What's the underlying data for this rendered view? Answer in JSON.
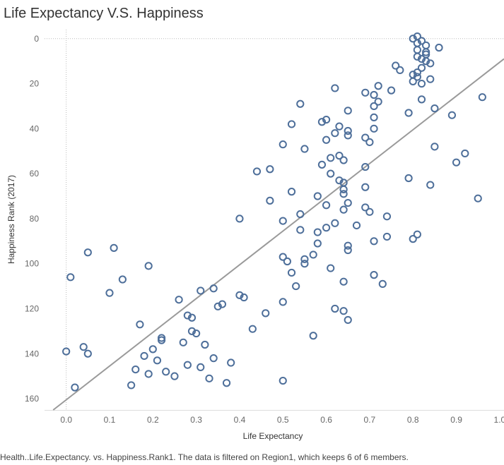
{
  "title": "Life Expectancy V.S. Happiness",
  "caption": "Health..Life.Expectancy. vs. Happiness.Rank1.  The data is filtered on Region1, which keeps 6 of 6 members.",
  "colors": {
    "marker": "#4e6f9a",
    "trend": "#9a9a9a",
    "zero_line": "#bbbbbb",
    "axis_text": "#666666"
  },
  "chart_data": {
    "type": "scatter",
    "xlabel": "Life Expectancy",
    "ylabel": "Happiness Rank (2017)",
    "xlim": [
      -0.05,
      1.01
    ],
    "ylim": [
      165,
      -4
    ],
    "y_reversed": true,
    "x_ticks": [
      "0.0",
      "0.1",
      "0.2",
      "0.3",
      "0.4",
      "0.5",
      "0.6",
      "0.7",
      "0.8",
      "0.9",
      "1.0"
    ],
    "y_ticks": [
      "0",
      "20",
      "40",
      "60",
      "80",
      "100",
      "120",
      "140",
      "160"
    ],
    "grid": false,
    "zero_lines": true,
    "trend_line": {
      "x": [
        -0.03,
        1.01
      ],
      "y": [
        165,
        9
      ]
    },
    "points": [
      [
        0.81,
        -1
      ],
      [
        0.8,
        0
      ],
      [
        0.82,
        1
      ],
      [
        0.81,
        2
      ],
      [
        0.83,
        3
      ],
      [
        0.86,
        4
      ],
      [
        0.81,
        5
      ],
      [
        0.83,
        6
      ],
      [
        0.83,
        7
      ],
      [
        0.81,
        8
      ],
      [
        0.82,
        9
      ],
      [
        0.83,
        10
      ],
      [
        0.84,
        11
      ],
      [
        0.76,
        12
      ],
      [
        0.82,
        13
      ],
      [
        0.77,
        14
      ],
      [
        0.81,
        15
      ],
      [
        0.8,
        16
      ],
      [
        0.81,
        17
      ],
      [
        0.84,
        18
      ],
      [
        0.8,
        19
      ],
      [
        0.82,
        20
      ],
      [
        0.72,
        21
      ],
      [
        0.62,
        22
      ],
      [
        0.75,
        23
      ],
      [
        0.69,
        24
      ],
      [
        0.71,
        25
      ],
      [
        0.96,
        26
      ],
      [
        0.82,
        27
      ],
      [
        0.72,
        28
      ],
      [
        0.54,
        29
      ],
      [
        0.71,
        30
      ],
      [
        0.85,
        31
      ],
      [
        0.65,
        32
      ],
      [
        0.79,
        33
      ],
      [
        0.89,
        34
      ],
      [
        0.71,
        35
      ],
      [
        0.6,
        36
      ],
      [
        0.59,
        37
      ],
      [
        0.52,
        38
      ],
      [
        0.63,
        39
      ],
      [
        0.71,
        40
      ],
      [
        0.65,
        41
      ],
      [
        0.62,
        42
      ],
      [
        0.65,
        43
      ],
      [
        0.69,
        44
      ],
      [
        0.6,
        45
      ],
      [
        0.7,
        46
      ],
      [
        0.5,
        47
      ],
      [
        0.85,
        48
      ],
      [
        0.55,
        49
      ],
      [
        0.92,
        51
      ],
      [
        0.63,
        52
      ],
      [
        0.61,
        53
      ],
      [
        0.64,
        54
      ],
      [
        0.9,
        55
      ],
      [
        0.59,
        56
      ],
      [
        0.69,
        57
      ],
      [
        0.47,
        58
      ],
      [
        0.44,
        59
      ],
      [
        0.61,
        60
      ],
      [
        0.79,
        62
      ],
      [
        0.63,
        63
      ],
      [
        0.64,
        64
      ],
      [
        0.84,
        65
      ],
      [
        0.69,
        66
      ],
      [
        0.64,
        67
      ],
      [
        0.52,
        68
      ],
      [
        0.64,
        69
      ],
      [
        0.58,
        70
      ],
      [
        0.95,
        71
      ],
      [
        0.47,
        72
      ],
      [
        0.65,
        73
      ],
      [
        0.6,
        74
      ],
      [
        0.69,
        75
      ],
      [
        0.64,
        76
      ],
      [
        0.7,
        77
      ],
      [
        0.54,
        78
      ],
      [
        0.74,
        79
      ],
      [
        0.4,
        80
      ],
      [
        0.5,
        81
      ],
      [
        0.62,
        82
      ],
      [
        0.67,
        83
      ],
      [
        0.6,
        84
      ],
      [
        0.54,
        85
      ],
      [
        0.58,
        86
      ],
      [
        0.81,
        87
      ],
      [
        0.74,
        88
      ],
      [
        0.8,
        89
      ],
      [
        0.71,
        90
      ],
      [
        0.58,
        91
      ],
      [
        0.65,
        92
      ],
      [
        0.11,
        93
      ],
      [
        0.65,
        94
      ],
      [
        0.05,
        95
      ],
      [
        0.57,
        96
      ],
      [
        0.5,
        97
      ],
      [
        0.55,
        98
      ],
      [
        0.51,
        99
      ],
      [
        0.55,
        100
      ],
      [
        0.19,
        101
      ],
      [
        0.61,
        102
      ],
      [
        0.52,
        104
      ],
      [
        0.71,
        105
      ],
      [
        0.01,
        106
      ],
      [
        0.13,
        107
      ],
      [
        0.64,
        108
      ],
      [
        0.73,
        109
      ],
      [
        0.53,
        110
      ],
      [
        0.34,
        111
      ],
      [
        0.31,
        112
      ],
      [
        0.1,
        113
      ],
      [
        0.4,
        114
      ],
      [
        0.41,
        115
      ],
      [
        0.26,
        116
      ],
      [
        0.5,
        117
      ],
      [
        0.36,
        118
      ],
      [
        0.35,
        119
      ],
      [
        0.62,
        120
      ],
      [
        0.64,
        121
      ],
      [
        0.46,
        122
      ],
      [
        0.28,
        123
      ],
      [
        0.29,
        124
      ],
      [
        0.65,
        125
      ],
      [
        0.17,
        127
      ],
      [
        0.43,
        129
      ],
      [
        0.29,
        130
      ],
      [
        0.3,
        131
      ],
      [
        0.57,
        132
      ],
      [
        0.22,
        133
      ],
      [
        0.22,
        134
      ],
      [
        0.27,
        135
      ],
      [
        0.32,
        136
      ],
      [
        0.04,
        137
      ],
      [
        0.2,
        138
      ],
      [
        0.0,
        139
      ],
      [
        0.05,
        140
      ],
      [
        0.18,
        141
      ],
      [
        0.34,
        142
      ],
      [
        0.21,
        143
      ],
      [
        0.38,
        144
      ],
      [
        0.28,
        145
      ],
      [
        0.31,
        146
      ],
      [
        0.16,
        147
      ],
      [
        0.23,
        148
      ],
      [
        0.19,
        149
      ],
      [
        0.25,
        150
      ],
      [
        0.33,
        151
      ],
      [
        0.5,
        152
      ],
      [
        0.37,
        153
      ],
      [
        0.15,
        154
      ],
      [
        0.02,
        155
      ]
    ]
  }
}
